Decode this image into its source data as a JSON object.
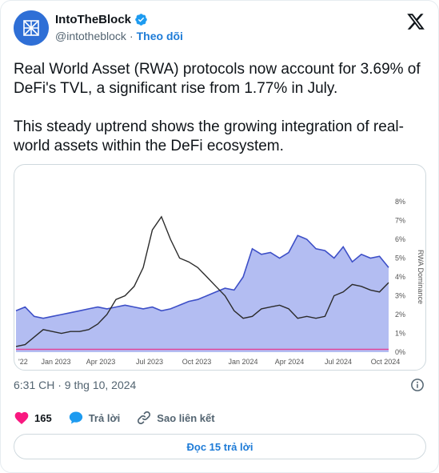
{
  "author": {
    "display_name": "IntoTheBlock",
    "handle": "@intotheblock",
    "separator": "·",
    "follow_label": "Theo dõi"
  },
  "tweet": {
    "paragraph_1": "Real World Asset (RWA) protocols now account for 3.69% of DeFi's TVL, a significant rise from 1.77% in July.",
    "paragraph_2": "This steady uptrend shows the growing integration of real-world assets within the DeFi ecosystem."
  },
  "chart_data": {
    "type": "area",
    "ylabel": "RWA Dominance",
    "x_tick_labels": [
      "'22",
      "Jan 2023",
      "Apr 2023",
      "Jul 2023",
      "Oct 2023",
      "Jan 2024",
      "Apr 2024",
      "Jul 2024",
      "Oct 2024"
    ],
    "y_tick_labels": [
      "0%",
      "1%",
      "2%",
      "3%",
      "4%",
      "5%",
      "6%",
      "7%",
      "8%"
    ],
    "ylim": [
      0,
      8
    ],
    "grid": false,
    "colors": {
      "area_fill": "#a6b2f0",
      "area_line": "#3d4fc7",
      "dark_line": "#2b2b2b",
      "pink_line": "#e0459a"
    },
    "series": [
      {
        "kind": "blue-area",
        "values": [
          2.2,
          2.4,
          1.9,
          1.8,
          1.9,
          2.0,
          2.1,
          2.2,
          2.3,
          2.4,
          2.3,
          2.4,
          2.5,
          2.4,
          2.3,
          2.4,
          2.2,
          2.3,
          2.5,
          2.7,
          2.8,
          3.0,
          3.2,
          3.4,
          3.3,
          4.0,
          5.5,
          5.2,
          5.3,
          5.0,
          5.3,
          6.2,
          6.0,
          5.5,
          5.4,
          5.0,
          5.6,
          4.8,
          5.2,
          5.0,
          5.1,
          4.5
        ]
      },
      {
        "kind": "dark-line",
        "values": [
          0.3,
          0.4,
          0.8,
          1.2,
          1.1,
          1.0,
          1.1,
          1.1,
          1.2,
          1.5,
          2.0,
          2.8,
          3.0,
          3.5,
          4.5,
          6.5,
          7.2,
          6.0,
          5.0,
          4.8,
          4.5,
          4.0,
          3.5,
          3.0,
          2.2,
          1.8,
          1.9,
          2.3,
          2.4,
          2.5,
          2.3,
          1.8,
          1.9,
          1.8,
          1.9,
          3.0,
          3.2,
          3.6,
          3.5,
          3.3,
          3.2,
          3.7
        ]
      },
      {
        "kind": "pink-line",
        "values": [
          0.15,
          0.15,
          0.15,
          0.15,
          0.15,
          0.15,
          0.15,
          0.15,
          0.15,
          0.15,
          0.15,
          0.15,
          0.15,
          0.15,
          0.15,
          0.15,
          0.15,
          0.15,
          0.15,
          0.15,
          0.15,
          0.15,
          0.15,
          0.15,
          0.15,
          0.15,
          0.15,
          0.15,
          0.15,
          0.15,
          0.15,
          0.15,
          0.15,
          0.15,
          0.15,
          0.15,
          0.15,
          0.15,
          0.15,
          0.15,
          0.15,
          0.15
        ]
      }
    ]
  },
  "meta": {
    "timestamp": "6:31 CH · 9 thg 10, 2024"
  },
  "actions": {
    "like_count": "165",
    "reply_label": "Trả lời",
    "copy_link_label": "Sao liên kết",
    "read_replies_label": "Đọc 15 trả lời"
  },
  "icons": {
    "avatar": "intotheblock-logo-icon",
    "verified": "verified-badge-icon",
    "x_logo": "x-logo-icon",
    "info": "info-icon",
    "like": "heart-icon",
    "reply": "speech-bubble-icon",
    "link": "link-icon"
  }
}
